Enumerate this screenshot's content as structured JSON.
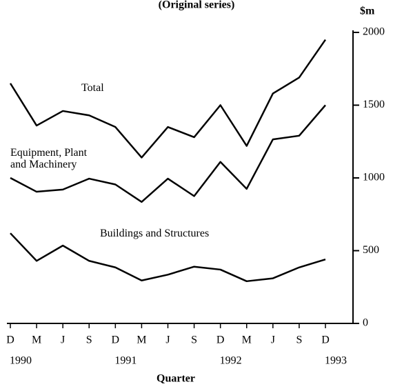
{
  "chart_data": {
    "type": "line",
    "subtitle": "(Original series)",
    "y_unit": "$m",
    "x_label": "Quarter",
    "categories": [
      "D",
      "M",
      "J",
      "S",
      "D",
      "M",
      "J",
      "S",
      "D",
      "M",
      "J",
      "S",
      "D"
    ],
    "year_labels": [
      "1990",
      null,
      null,
      null,
      "1991",
      null,
      null,
      null,
      "1992",
      null,
      null,
      null,
      "1993"
    ],
    "series": [
      {
        "name": "Total",
        "color": "#000000",
        "values": [
          1650,
          1360,
          1460,
          1430,
          1350,
          1140,
          1350,
          1280,
          1500,
          1220,
          1580,
          1690,
          1950
        ]
      },
      {
        "name": "Equipment, Plant and Machinery",
        "color": "#000000",
        "values": [
          1000,
          905,
          920,
          995,
          955,
          835,
          995,
          875,
          1110,
          925,
          1265,
          1290,
          1500
        ]
      },
      {
        "name": "Buildings and Structures",
        "color": "#000000",
        "values": [
          620,
          430,
          535,
          430,
          385,
          295,
          335,
          390,
          370,
          290,
          310,
          385,
          440
        ]
      }
    ],
    "ylim": [
      0,
      2000
    ],
    "yticks": [
      0,
      500,
      1000,
      1500,
      2000
    ],
    "y_axis_side": "right",
    "grid": false
  }
}
